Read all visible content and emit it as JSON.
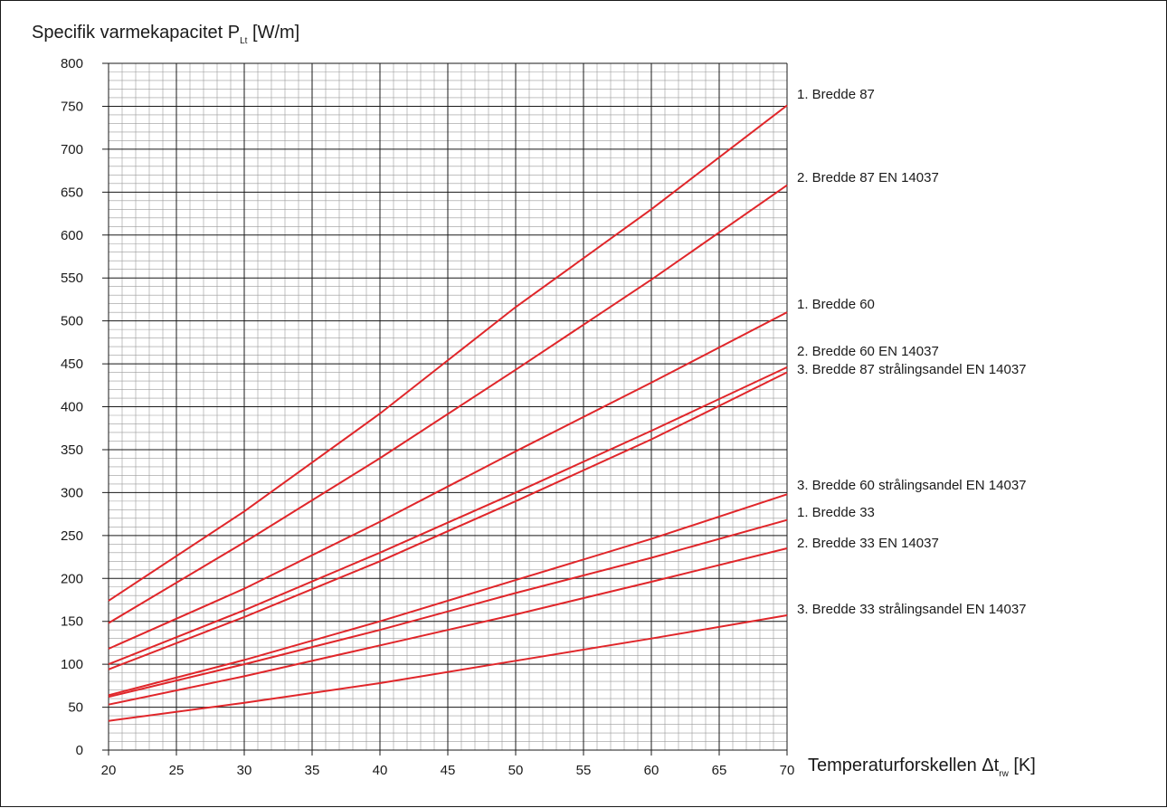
{
  "chart_data": {
    "type": "line",
    "ylabel": {
      "main": "Specifik varmekapacitet P",
      "sub": "Lt",
      "unit": " [W/m]"
    },
    "xlabel": {
      "main": "Temperaturforskellen Δt",
      "sub": "rw",
      "unit": " [K]"
    },
    "xlim": [
      20,
      70
    ],
    "ylim": [
      0,
      800
    ],
    "x_ticks": [
      20,
      25,
      30,
      35,
      40,
      45,
      50,
      55,
      60,
      65,
      70
    ],
    "y_ticks": [
      0,
      50,
      100,
      150,
      200,
      250,
      300,
      350,
      400,
      450,
      500,
      550,
      600,
      650,
      700,
      750,
      800
    ],
    "grid": true,
    "line_color": "#e0262a",
    "series": [
      {
        "name": "1. Bredde 87",
        "x": [
          20,
          30,
          40,
          50,
          60,
          70
        ],
        "y": [
          174,
          278,
          392,
          516,
          630,
          751
        ]
      },
      {
        "name": "2. Bredde 87 EN 14037",
        "x": [
          20,
          30,
          40,
          50,
          60,
          70
        ],
        "y": [
          148,
          242,
          340,
          443,
          548,
          658
        ]
      },
      {
        "name": "1. Bredde 60",
        "x": [
          20,
          30,
          40,
          50,
          60,
          70
        ],
        "y": [
          118,
          188,
          266,
          348,
          428,
          510
        ]
      },
      {
        "name": "2. Bredde 60 EN 14037",
        "x": [
          20,
          30,
          40,
          50,
          60,
          70
        ],
        "y": [
          100,
          163,
          230,
          300,
          372,
          446
        ]
      },
      {
        "name": "3. Bredde 87 strålingsandel EN 14037",
        "x": [
          20,
          30,
          40,
          50,
          60,
          70
        ],
        "y": [
          94,
          155,
          220,
          290,
          362,
          440
        ]
      },
      {
        "name": "3. Bredde 60 strålingsandel EN 14037",
        "x": [
          20,
          30,
          40,
          50,
          60,
          70
        ],
        "y": [
          64,
          105,
          150,
          198,
          246,
          298
        ]
      },
      {
        "name": "1. Bredde 33",
        "x": [
          20,
          30,
          40,
          50,
          60,
          70
        ],
        "y": [
          62,
          100,
          140,
          183,
          224,
          268
        ]
      },
      {
        "name": "2. Bredde 33 EN 14037",
        "x": [
          20,
          30,
          40,
          50,
          60,
          70
        ],
        "y": [
          53,
          86,
          122,
          158,
          196,
          235
        ]
      },
      {
        "name": "3. Bredde 33 strålingsandel EN 14037",
        "x": [
          20,
          30,
          40,
          50,
          60,
          70
        ],
        "y": [
          34,
          55,
          78,
          104,
          130,
          157
        ]
      }
    ]
  }
}
